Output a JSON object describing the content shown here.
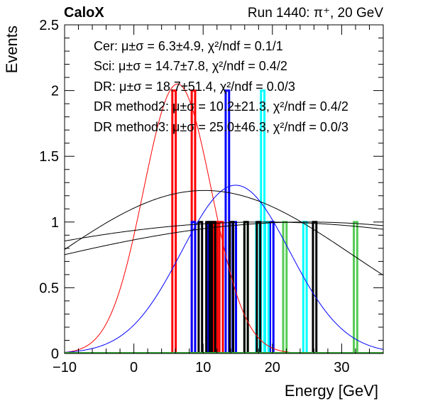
{
  "chart_data": {
    "type": "histogram",
    "title_left": "CaloX",
    "title_right": "Run 1440: π⁺, 20 GeV",
    "xlabel": "Energy [GeV]",
    "ylabel": "Events",
    "xlim": [
      -10,
      36
    ],
    "ylim": [
      0,
      2.5
    ],
    "xticks": [
      -10,
      0,
      10,
      20,
      30
    ],
    "yticks": [
      0,
      0.5,
      1,
      1.5,
      2,
      2.5
    ],
    "x_tick_labels": [
      "−10",
      "0",
      "10",
      "20",
      "30"
    ],
    "y_tick_labels": [
      "0",
      "0.5",
      "1",
      "1.5",
      "2",
      "2.5"
    ],
    "legend": [
      "Cer: μ±σ = 6.3±4.9, χ²/ndf = 0.1/1",
      "Sci: μ±σ = 14.7±7.8, χ²/ndf = 0.4/2",
      "DR: μ±σ = 18.7±51.4, χ²/ndf = 0.0/3",
      "DR method2: μ±σ = 10.2±21.3, χ²/ndf = 0.4/2",
      "DR method3: μ±σ = 25.0±46.3, χ²/ndf = 0.0/3"
    ],
    "series": [
      {
        "color": "#ff0000",
        "bins": [
          [
            5.8,
            2
          ],
          [
            8.6,
            2
          ],
          [
            11.8,
            1
          ],
          [
            12.6,
            1
          ]
        ]
      },
      {
        "color": "#0000ff",
        "bins": [
          [
            8.6,
            1
          ],
          [
            11.0,
            1
          ],
          [
            13.5,
            2
          ],
          [
            14.5,
            1
          ],
          [
            19.9,
            1
          ]
        ]
      },
      {
        "color": "#00ffff",
        "bins": [
          [
            17.9,
            1
          ],
          [
            18.6,
            2
          ],
          [
            19.2,
            1
          ],
          [
            24.7,
            1
          ]
        ]
      },
      {
        "color": "#55cc55",
        "bins": [
          [
            16.2,
            1
          ],
          [
            21.8,
            1
          ],
          [
            32.0,
            1
          ]
        ]
      },
      {
        "color": "#000000",
        "bins": [
          [
            9.6,
            1
          ],
          [
            10.7,
            1
          ],
          [
            11.5,
            1
          ],
          [
            14.1,
            1
          ],
          [
            16.2,
            1
          ],
          [
            18.0,
            1
          ],
          [
            26.1,
            1
          ]
        ]
      }
    ],
    "fits": [
      {
        "color": "#ff0000",
        "mean": 6.3,
        "sigma": 4.9,
        "amp": 2.05
      },
      {
        "color": "#0000ff",
        "mean": 14.7,
        "sigma": 7.8,
        "amp": 1.28
      },
      {
        "color": "#000000",
        "mean": 18.7,
        "sigma": 51.4,
        "amp": 1.0
      },
      {
        "color": "#000000",
        "mean": 10.2,
        "sigma": 21.3,
        "amp": 1.24
      },
      {
        "color": "#000000",
        "mean": 25.0,
        "sigma": 46.3,
        "amp": 1.0
      }
    ]
  }
}
